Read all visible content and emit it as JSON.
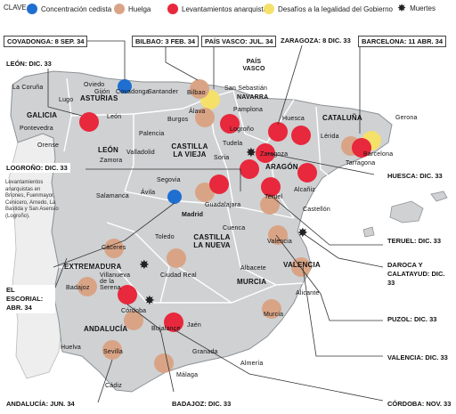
{
  "legend": {
    "title": "CLAVE",
    "items": [
      {
        "label": "Concentración cedista",
        "color": "#1f6fd1"
      },
      {
        "label": "Huelga",
        "color": "#d9a486"
      },
      {
        "label": "Levantamientos anarquistas",
        "color": "#e8283c"
      },
      {
        "label": "Desafíos a la legalidad del Gobierno",
        "color": "#f5e06a"
      },
      {
        "label": "Muertes",
        "color": "#222222"
      }
    ]
  },
  "regions": [
    "GALICIA",
    "ASTURIAS",
    "LEÓN",
    "CASTILLA LA VIEJA",
    "PAÍS VASCO",
    "NAVARRA",
    "ARAGÓN",
    "CATALUÑA",
    "CASTILLA LA NUEVA",
    "EXTREMADURA",
    "VALENCIA",
    "MURCIA",
    "ANDALUCÍA"
  ],
  "cities": [
    "La Coruña",
    "Lugo",
    "Pontevedra",
    "Orense",
    "Oviedo",
    "Santander",
    "Gijón",
    "Covadonga",
    "Bilbao",
    "Álava",
    "San Sebastián",
    "Pamplona",
    "León",
    "Burgos",
    "Palencia",
    "Logroño",
    "Zamora",
    "Valladolid",
    "Soria",
    "Huesca",
    "Zaragoza",
    "Lérida",
    "Gerona",
    "Barcelona",
    "Tarragona",
    "Salamanca",
    "Segovia",
    "Ávila",
    "Guadalajara",
    "Madrid",
    "Teruel",
    "Castellón",
    "Cuenca",
    "Cáceres",
    "Toledo",
    "Valencia",
    "Albacete",
    "Alicante",
    "Badajoz",
    "Ciudad Real",
    "Villanueva de la Serena",
    "Murcia",
    "Córdoba",
    "Jaén",
    "Bujalance",
    "Sevilla",
    "Granada",
    "Almería",
    "Huelva",
    "Málaga",
    "Cádiz",
    "Alcañiz",
    "Tudela"
  ],
  "callouts": [
    "COVADONGA: 8 SEP. 34",
    "BILBAO: 3 FEB. 34",
    "PAÍS VASCO: JUL. 34",
    "ZARAGOZA: 8 DIC. 33",
    "BARCELONA: 11 ABR. 34",
    "LEÓN: DIC. 33",
    "LOGROÑO: DIC. 33",
    "HUESCA: DIC. 33",
    "TERUEL: DIC. 33",
    "DAROCA Y CALATAYUD: DIC. 33",
    "EL ESCORIAL: ABR. 34",
    "PUZOL: DIC. 33",
    "VALENCIA: DIC. 33",
    "ANDALUCÍA: JUN. 34",
    "BADAJOZ: DIC. 33",
    "CÓRDOBA: NOV. 33"
  ],
  "note": "Levantamientos anarquistas en Briones, Fuenmayor, Cenicero, Arnedo, La Bastida y San Asensio (Logroño)."
}
